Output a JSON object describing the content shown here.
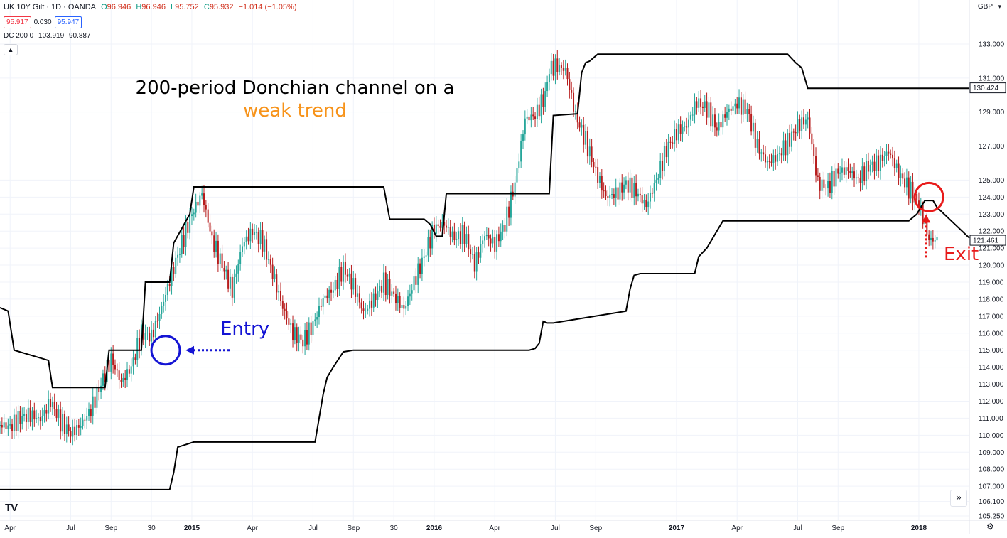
{
  "header": {
    "symbol": "UK 10Y Gilt · 1D · OANDA",
    "ohlc": [
      {
        "label": "O",
        "value": "96.946"
      },
      {
        "label": "H",
        "value": "96.946"
      },
      {
        "label": "L",
        "value": "95.752"
      },
      {
        "label": "C",
        "value": "95.932"
      }
    ],
    "change": "−1.014 (−1.05%)",
    "sell_price": "95.917",
    "spread": "0.030",
    "buy_price": "95.947",
    "indicator_name": "DC 200 0",
    "indicator_upper": "103.919",
    "indicator_lower": "90.887",
    "collapse_icon": "chevron-up-icon"
  },
  "currency": "GBP",
  "chart_data": {
    "type": "line",
    "y_axis_side": "right",
    "ylim": [
      105.0,
      133.5
    ],
    "y_ticks": [
      "133.000",
      "131.000",
      "129.000",
      "127.000",
      "125.000",
      "124.000",
      "123.000",
      "122.000",
      "121.000",
      "120.000",
      "119.000",
      "118.000",
      "117.000",
      "116.000",
      "115.000",
      "114.000",
      "113.000",
      "112.000",
      "111.000",
      "110.000",
      "109.000",
      "108.000",
      "107.000",
      "106.100",
      "105.250"
    ],
    "x_ticks": [
      {
        "label": "Apr",
        "x": 0.5
      },
      {
        "label": "Jul",
        "x": 3.5
      },
      {
        "label": "Sep",
        "x": 5.5
      },
      {
        "label": "30",
        "x": 7.5
      },
      {
        "label": "2015",
        "x": 9.5
      },
      {
        "label": "Apr",
        "x": 12.5
      },
      {
        "label": "Jul",
        "x": 15.5
      },
      {
        "label": "Sep",
        "x": 17.5
      },
      {
        "label": "30",
        "x": 19.5
      },
      {
        "label": "2016",
        "x": 21.5
      },
      {
        "label": "Apr",
        "x": 24.5
      },
      {
        "label": "Jul",
        "x": 27.5
      },
      {
        "label": "Sep",
        "x": 29.5
      },
      {
        "label": "2017",
        "x": 33.5
      },
      {
        "label": "Apr",
        "x": 36.5
      },
      {
        "label": "Jul",
        "x": 39.5
      },
      {
        "label": "Sep",
        "x": 41.5
      },
      {
        "label": "2018",
        "x": 45.5
      }
    ],
    "xlim": [
      0,
      48
    ],
    "series": [
      {
        "name": "",
        "style": "price-candles",
        "color_up": "#26a69a",
        "color_down": "#b71c1c",
        "x": [
          0,
          0.5,
          1,
          1.5,
          2,
          2.5,
          3,
          3.5,
          4,
          4.5,
          5,
          5.5,
          6,
          6.5,
          7,
          7.5,
          8,
          8.5,
          9,
          9.5,
          10,
          10.5,
          11,
          11.5,
          12,
          12.5,
          13,
          13.5,
          14,
          14.5,
          15,
          15.5,
          16,
          16.5,
          17,
          17.5,
          18,
          18.5,
          19,
          19.5,
          20,
          20.5,
          21,
          21.5,
          22,
          22.5,
          23,
          23.5,
          24,
          24.5,
          25,
          25.5,
          26,
          26.5,
          27,
          27.2,
          27.5,
          28,
          28.5,
          29,
          29.5,
          30,
          30.5,
          31,
          31.5,
          32,
          32.5,
          33,
          33.5,
          34,
          34.5,
          35,
          35.5,
          36,
          36.5,
          37,
          37.5,
          38,
          38.5,
          39,
          39.5,
          40,
          40.5,
          41,
          41.5,
          42,
          42.5,
          43,
          43.5,
          44,
          44.5,
          45,
          45.5,
          46,
          46.5
        ],
        "values": [
          110.6,
          110.5,
          111.0,
          111.2,
          110.9,
          112.0,
          110.8,
          110.1,
          110.6,
          111.5,
          113.0,
          114.5,
          113.1,
          114.0,
          116.0,
          115.8,
          117.5,
          119.5,
          121.3,
          123.0,
          124.2,
          121.5,
          120.0,
          118.5,
          121.2,
          122.0,
          121.4,
          119.5,
          117.5,
          116.0,
          115.5,
          116.5,
          118.0,
          118.6,
          119.8,
          118.8,
          117.2,
          118.0,
          119.0,
          118.2,
          117.4,
          119.0,
          120.5,
          122.2,
          122.4,
          121.6,
          121.8,
          120.0,
          121.8,
          121.2,
          122.4,
          124.8,
          128.6,
          128.8,
          130.0,
          131.5,
          131.7,
          131.5,
          128.8,
          127.3,
          125.5,
          124.0,
          124.2,
          124.8,
          124.3,
          123.5,
          125.0,
          126.8,
          127.8,
          128.2,
          129.6,
          129.2,
          128.0,
          129.0,
          129.5,
          129.1,
          127.0,
          126.0,
          126.4,
          127.2,
          128.2,
          128.6,
          124.8,
          124.6,
          125.5,
          125.6,
          125.0,
          125.8,
          126.0,
          126.7,
          125.4,
          124.5,
          123.6,
          121.5,
          121.46
        ]
      },
      {
        "name": "",
        "style": "step",
        "color": "#000000",
        "x": [
          0,
          0.4,
          0.7,
          2.4,
          2.6,
          5.2,
          5.4,
          7.0,
          7.2,
          8.4,
          8.6,
          9.4,
          9.6,
          19.0,
          19.3,
          21.0,
          21.3,
          21.6,
          21.9,
          22.1,
          27.2,
          27.4,
          28.6,
          28.8,
          29.0,
          29.2,
          29.6,
          39.0,
          39.4,
          39.7,
          40.0,
          48.0
        ],
        "values": [
          117.5,
          117.3,
          115.0,
          114.4,
          112.8,
          112.8,
          115.0,
          115.0,
          119.0,
          119.0,
          121.3,
          123.0,
          124.6,
          124.6,
          122.7,
          122.7,
          122.4,
          121.7,
          121.7,
          124.2,
          124.2,
          128.8,
          128.9,
          131.3,
          131.9,
          132.0,
          132.4,
          132.4,
          131.9,
          131.6,
          130.4,
          130.4
        ]
      },
      {
        "name": "",
        "style": "step",
        "color": "#000000",
        "x": [
          0,
          8.4,
          8.6,
          8.8,
          9.6,
          15.6,
          15.8,
          16.0,
          16.2,
          16.5,
          17.0,
          17.5,
          19.0,
          26.2,
          26.5,
          26.7,
          26.9,
          27.1,
          27.4,
          31.0,
          31.2,
          31.4,
          31.7,
          32.0,
          34.4,
          34.6,
          35.0,
          35.4,
          35.8,
          45.0,
          45.4,
          45.8,
          46.2,
          46.4,
          48.0
        ],
        "values": [
          106.8,
          106.8,
          107.8,
          109.3,
          109.6,
          109.6,
          111.0,
          112.4,
          113.4,
          114.0,
          114.9,
          115.0,
          115.0,
          115.0,
          115.1,
          115.4,
          116.7,
          116.6,
          116.6,
          117.3,
          118.6,
          119.4,
          119.5,
          119.5,
          119.5,
          120.5,
          121.0,
          121.8,
          122.6,
          122.6,
          123.0,
          123.8,
          123.8,
          123.4,
          121.6
        ]
      }
    ],
    "last_price_labels": [
      {
        "value": 130.424,
        "text": "130.424"
      },
      {
        "value": 121.461,
        "text": "121.461"
      }
    ]
  },
  "annotations": {
    "title_line1": "200-period Donchian channel on a",
    "title_line2": "weak trend",
    "entry_label": "Entry",
    "exit_label": "Exit",
    "entry_color": "#1414d4",
    "exit_color": "#e81a1a",
    "title_accent_color": "#f7931a",
    "entry_point": {
      "x": 8.2,
      "y": 115.0
    },
    "exit_point": {
      "x": 46.0,
      "y": 124.0
    }
  },
  "footer": {
    "logo_text": "TV",
    "nav_icon": "double-chevron-right-icon",
    "settings_icon": "gear-icon"
  }
}
